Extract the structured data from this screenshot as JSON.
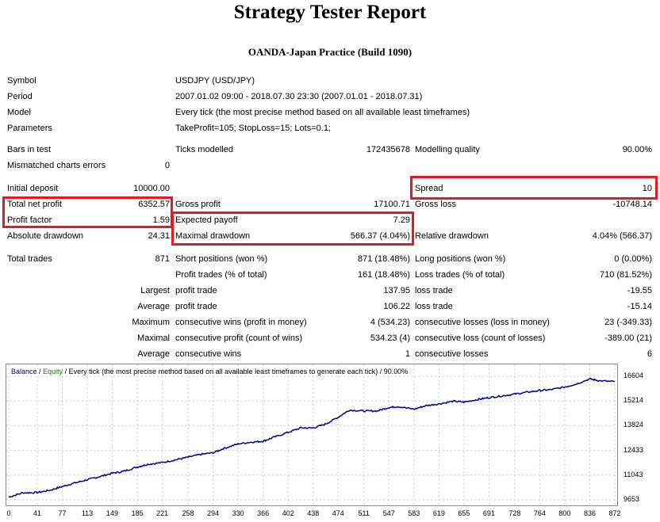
{
  "report": {
    "title": "Strategy Tester Report",
    "server": "OANDA-Japan Practice (Build 1090)"
  },
  "info": {
    "symbol_label": "Symbol",
    "symbol_value": "USDJPY (USD/JPY)",
    "period_label": "Period",
    "period_value": "2007.01.02 09:00 - 2018.07.30 23:30 (2007.01.01 - 2018.07.31)",
    "model_label": "Model",
    "model_value": "Every tick (the most precise method based on all available least timeframes)",
    "params_label": "Parameters",
    "params_value": "TakeProfit=105; StopLoss=15; Lots=0.1;",
    "bars_label": "Bars in test",
    "ticks_label": "Ticks modelled",
    "ticks_value": "172435678",
    "quality_label": "Modelling quality",
    "quality_value": "90.00%",
    "mismatch_label": "Mismatched charts errors",
    "mismatch_value": "0"
  },
  "results": {
    "initial_deposit_label": "Initial deposit",
    "initial_deposit_value": "10000.00",
    "spread_label": "Spread",
    "spread_value": "10",
    "total_net_profit_label": "Total net profit",
    "total_net_profit_value": "6352.57",
    "gross_profit_label": "Gross profit",
    "gross_profit_value": "17100.71",
    "gross_loss_label": "Gross loss",
    "gross_loss_value": "-10748.14",
    "profit_factor_label": "Profit factor",
    "profit_factor_value": "1.59",
    "expected_payoff_label": "Expected payoff",
    "expected_payoff_value": "7.29",
    "absolute_drawdown_label": "Absolute drawdown",
    "absolute_drawdown_value": "24.31",
    "maximal_drawdown_label": "Maximal drawdown",
    "maximal_drawdown_value": "566.37 (4.04%)",
    "relative_drawdown_label": "Relative drawdown",
    "relative_drawdown_value": "4.04% (566.37)"
  },
  "trades": {
    "total_label": "Total trades",
    "total_value": "871",
    "short_label": "Short positions (won %)",
    "short_value": "871 (18.48%)",
    "long_label": "Long positions (won %)",
    "long_value": "0 (0.00%)",
    "profit_trades_label": "Profit trades (% of total)",
    "profit_trades_value": "161 (18.48%)",
    "loss_trades_label": "Loss trades (% of total)",
    "loss_trades_value": "710 (81.52%)",
    "largest_label": "Largest",
    "largest_profit_label": "profit trade",
    "largest_profit_value": "137.95",
    "largest_loss_label": "loss trade",
    "largest_loss_value": "-19.55",
    "average_label": "Average",
    "average_profit_label": "profit trade",
    "average_profit_value": "106.22",
    "average_loss_label": "loss trade",
    "average_loss_value": "-15.14",
    "maximum_label": "Maximum",
    "max_wins_label": "consecutive wins (profit in money)",
    "max_wins_value": "4 (534.23)",
    "max_losses_label": "consecutive losses (loss in money)",
    "max_losses_value": "23 (-349.33)",
    "maximal_label": "Maximal",
    "maximal_profit_label": "consecutive profit (count of wins)",
    "maximal_profit_value": "534.23 (4)",
    "maximal_loss_label": "consecutive loss (count of losses)",
    "maximal_loss_value": "-389.00 (21)",
    "avg_label": "Average",
    "avg_wins_label": "consecutive wins",
    "avg_wins_value": "1",
    "avg_losses_label": "consecutive losses",
    "avg_losses_value": "6"
  },
  "colors": {
    "highlight": "#e41b23",
    "balance": "#00008b",
    "equity": "#008000",
    "grid": "#c8c8c8"
  },
  "chart_data": {
    "type": "line",
    "legend_balance": "Balance",
    "legend_sep1": " / ",
    "legend_equity": "Equity",
    "legend_rest": " / Every tick (the most precise method based on all available least timeframes to generate each tick) / 90.00%",
    "x_ticks": [
      "0",
      "41",
      "77",
      "113",
      "149",
      "185",
      "221",
      "258",
      "294",
      "330",
      "366",
      "402",
      "438",
      "474",
      "511",
      "547",
      "583",
      "619",
      "655",
      "691",
      "728",
      "764",
      "800",
      "836",
      "872"
    ],
    "y_ticks": [
      "16604",
      "15214",
      "13824",
      "12433",
      "11043",
      "9653"
    ],
    "ylim": [
      9653,
      16604
    ],
    "xlim": [
      0,
      872
    ],
    "series": [
      {
        "x": [
          0,
          20,
          41,
          60,
          77,
          95,
          113,
          130,
          149,
          165,
          185,
          200,
          221,
          240,
          258,
          275,
          294,
          310,
          330,
          350,
          366,
          380,
          402,
          420,
          438,
          455,
          474,
          490,
          511,
          530,
          547,
          560,
          583,
          600,
          619,
          640,
          655,
          675,
          691,
          710,
          728,
          745,
          764,
          780,
          800,
          815,
          836,
          850,
          872
        ],
        "y": [
          9800,
          10050,
          10060,
          10200,
          10400,
          10600,
          10780,
          10950,
          11150,
          11250,
          11500,
          11650,
          11750,
          11900,
          12050,
          12200,
          12300,
          12550,
          12800,
          12900,
          12950,
          13150,
          13450,
          13700,
          13700,
          13900,
          14300,
          14700,
          14650,
          14650,
          14850,
          14900,
          14750,
          14950,
          15050,
          15200,
          15150,
          15300,
          15400,
          15500,
          15600,
          15700,
          15800,
          15850,
          16000,
          16150,
          16450,
          16350,
          16300
        ]
      }
    ]
  }
}
